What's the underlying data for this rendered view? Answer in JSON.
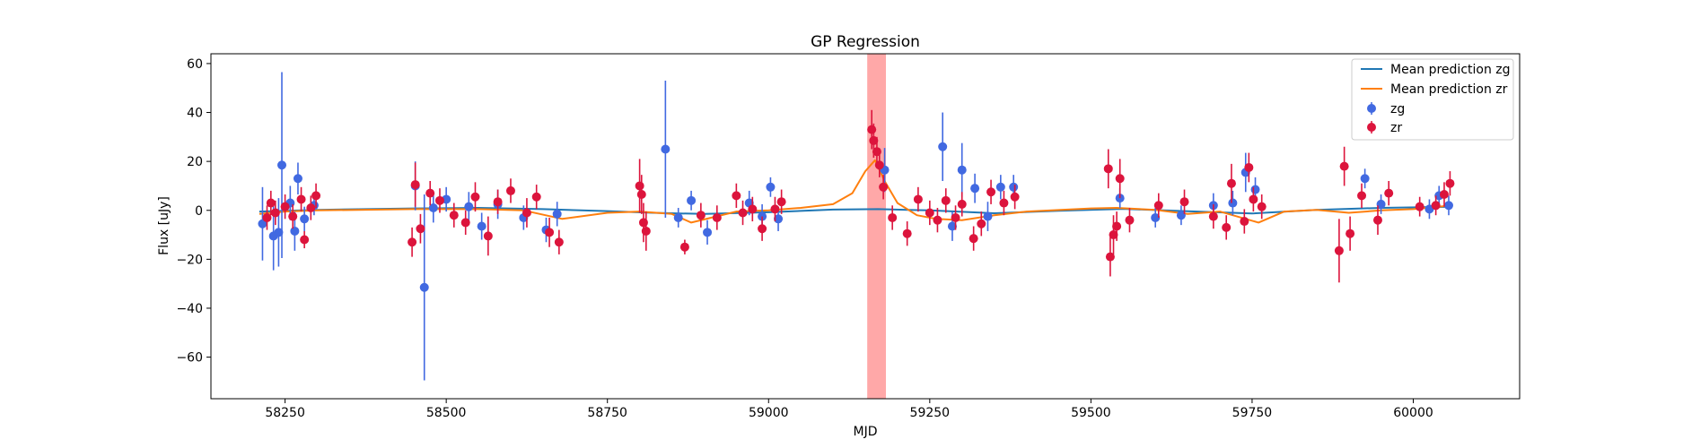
{
  "chart_data": {
    "type": "scatter",
    "title": "GP Regression",
    "xlabel": "MJD",
    "ylabel": "Flux [uJy]",
    "xlim": [
      58135,
      60165
    ],
    "ylim": [
      -77,
      64
    ],
    "xticks": [
      58250,
      58500,
      58750,
      59000,
      59250,
      59500,
      59750,
      60000
    ],
    "yticks": [
      -60,
      -40,
      -20,
      0,
      20,
      40,
      60
    ],
    "grid": false,
    "legend_position": "top-right",
    "highlight_band": {
      "x_start": 59153,
      "x_end": 59182,
      "color": "#ff9999"
    },
    "series": [
      {
        "name": "Mean prediction zg",
        "kind": "line",
        "color": "#1f77b4",
        "x": [
          58210,
          58300,
          58450,
          58550,
          58650,
          58750,
          58820,
          58900,
          59000,
          59100,
          59170,
          59250,
          59350,
          59450,
          59550,
          59650,
          59750,
          59850,
          59950,
          60060
        ],
        "y": [
          -0.5,
          0.2,
          0.8,
          1.0,
          0.5,
          -0.3,
          -1.0,
          -1.5,
          -0.8,
          0.3,
          0.5,
          0.0,
          -1.2,
          -0.2,
          0.6,
          -0.4,
          -1.3,
          0.2,
          1.0,
          1.5
        ]
      },
      {
        "name": "Mean prediction zr",
        "kind": "line",
        "color": "#ff7f0e",
        "x": [
          58210,
          58250,
          58300,
          58450,
          58550,
          58620,
          58680,
          58750,
          58800,
          58850,
          58880,
          58950,
          59000,
          59050,
          59100,
          59130,
          59150,
          59165,
          59180,
          59200,
          59230,
          59260,
          59300,
          59350,
          59400,
          59500,
          59540,
          59600,
          59650,
          59700,
          59760,
          59800,
          59850,
          59900,
          59950,
          60000,
          60060
        ],
        "y": [
          -1.5,
          -0.5,
          0.0,
          0.5,
          0.5,
          0.0,
          -3.5,
          -1.0,
          -0.5,
          -1.5,
          -5.0,
          -0.5,
          0.0,
          1.0,
          2.5,
          7.0,
          16.0,
          20.5,
          12.0,
          3.0,
          -2.0,
          -3.5,
          -4.0,
          -2.0,
          -0.5,
          0.8,
          1.0,
          0.2,
          -1.5,
          -0.5,
          -5.0,
          -0.5,
          0.2,
          -1.0,
          0.0,
          0.5,
          2.0
        ]
      },
      {
        "name": "zg",
        "kind": "errorbar",
        "color": "#4169e1",
        "x": [
          58215,
          58232,
          58240,
          58245,
          58258,
          58265,
          58270,
          58280,
          58295,
          58452,
          58466,
          58480,
          58500,
          58535,
          58555,
          58580,
          58620,
          58655,
          58672,
          58840,
          58860,
          58880,
          58905,
          58970,
          58990,
          59003,
          59015,
          59180,
          59270,
          59285,
          59300,
          59320,
          59340,
          59360,
          59380,
          59545,
          59600,
          59640,
          59690,
          59720,
          59740,
          59755,
          59925,
          59950,
          60025,
          60040,
          60055
        ],
        "y": [
          -5.5,
          -10.5,
          -9.0,
          18.5,
          3.0,
          -8.5,
          13.0,
          -3.5,
          2.0,
          10.0,
          -31.5,
          1.0,
          4.5,
          1.5,
          -6.5,
          2.5,
          -3.0,
          -8.0,
          -1.5,
          25.0,
          -3.0,
          4.0,
          -9.0,
          3.0,
          -2.5,
          9.5,
          -3.5,
          16.5,
          26.0,
          -6.5,
          16.5,
          9.0,
          -2.5,
          9.5,
          9.5,
          5.0,
          -3.0,
          -2.0,
          2.0,
          3.0,
          15.5,
          8.5,
          13.0,
          2.5,
          0.5,
          6.0,
          2.0
        ],
        "err": [
          15.0,
          14.0,
          14.0,
          38.0,
          7.0,
          8.0,
          6.5,
          5.0,
          4.0,
          10.0,
          38.0,
          6.0,
          5.0,
          6.0,
          5.5,
          6.0,
          5.0,
          5.0,
          5.0,
          28.0,
          4.0,
          4.0,
          5.0,
          5.0,
          5.0,
          4.0,
          5.0,
          9.0,
          14.0,
          6.0,
          11.0,
          6.0,
          6.0,
          5.0,
          5.0,
          4.0,
          4.0,
          4.0,
          5.0,
          5.0,
          8.0,
          5.0,
          4.0,
          4.0,
          4.0,
          4.0,
          4.0
        ]
      },
      {
        "name": "zr",
        "kind": "errorbar",
        "color": "#dc143c",
        "x": [
          58222,
          58228,
          58235,
          58250,
          58262,
          58275,
          58280,
          58290,
          58298,
          58447,
          58452,
          58460,
          58475,
          58490,
          58512,
          58530,
          58545,
          58565,
          58580,
          58600,
          58625,
          58640,
          58660,
          58675,
          58800,
          58803,
          58806,
          58810,
          58870,
          58895,
          58920,
          58950,
          58960,
          58975,
          58990,
          59010,
          59020,
          59160,
          59163,
          59168,
          59172,
          59178,
          59192,
          59215,
          59232,
          59250,
          59262,
          59275,
          59290,
          59300,
          59318,
          59330,
          59345,
          59365,
          59382,
          59527,
          59530,
          59535,
          59540,
          59545,
          59560,
          59605,
          59645,
          59690,
          59710,
          59718,
          59738,
          59745,
          59752,
          59765,
          59885,
          59893,
          59902,
          59920,
          59945,
          59962,
          60010,
          60035,
          60048,
          60057
        ],
        "y": [
          -3.0,
          3.0,
          -1.0,
          1.5,
          -2.5,
          4.5,
          -12.0,
          1.0,
          6.0,
          -13.0,
          10.5,
          -7.5,
          7.0,
          4.0,
          -2.0,
          -5.0,
          5.5,
          -10.5,
          3.5,
          8.0,
          -1.0,
          5.5,
          -9.0,
          -13.0,
          10.0,
          6.5,
          -5.0,
          -8.5,
          -15.0,
          -2.0,
          -3.0,
          6.0,
          -1.0,
          0.5,
          -7.5,
          0.5,
          3.5,
          33.0,
          28.5,
          24.0,
          18.5,
          9.5,
          -3.0,
          -9.5,
          4.5,
          -1.0,
          -4.0,
          4.0,
          -3.0,
          2.5,
          -11.5,
          -5.5,
          7.5,
          3.0,
          5.5,
          17.0,
          -19.0,
          -10.0,
          -6.5,
          13.0,
          -4.0,
          2.0,
          3.5,
          -2.5,
          -7.0,
          11.0,
          -4.5,
          17.5,
          4.5,
          1.5,
          -16.5,
          18.0,
          -9.5,
          6.0,
          -4.0,
          7.0,
          1.5,
          2.0,
          6.5,
          11.0
        ],
        "err": [
          5.0,
          5.0,
          5.0,
          5.0,
          5.0,
          5.0,
          3.5,
          5.0,
          5.0,
          6.0,
          9.0,
          6.0,
          5.0,
          5.0,
          5.0,
          5.0,
          6.0,
          8.0,
          5.0,
          5.0,
          6.0,
          5.0,
          6.0,
          5.0,
          11.0,
          8.0,
          8.0,
          8.0,
          3.0,
          5.0,
          5.0,
          5.0,
          5.0,
          5.0,
          5.0,
          5.0,
          5.0,
          8.0,
          7.0,
          6.0,
          5.0,
          5.0,
          5.0,
          5.0,
          5.0,
          5.0,
          5.0,
          5.0,
          5.0,
          5.0,
          5.0,
          5.0,
          5.0,
          5.0,
          5.0,
          8.0,
          8.0,
          8.0,
          6.0,
          8.0,
          5.0,
          5.0,
          5.0,
          5.0,
          5.0,
          8.0,
          5.0,
          6.0,
          5.0,
          5.0,
          13.0,
          8.0,
          7.0,
          5.0,
          6.0,
          5.0,
          4.0,
          4.0,
          5.0,
          5.0
        ]
      }
    ]
  }
}
